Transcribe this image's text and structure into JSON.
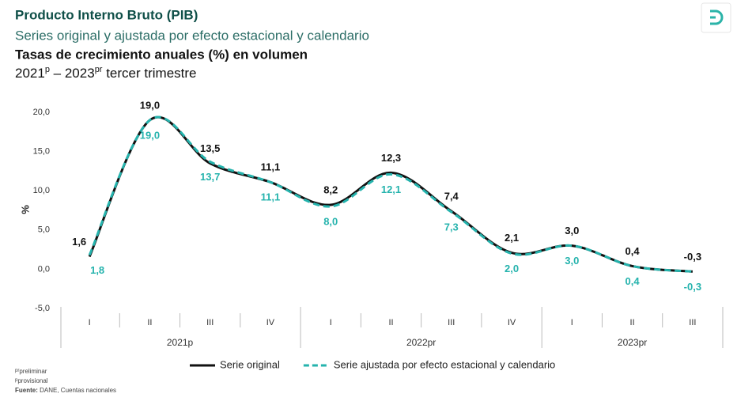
{
  "chart_data": {
    "type": "line",
    "title": "Producto Interno Bruto (PIB)",
    "subtitle": "Series original y ajustada por efecto estacional y calendario",
    "subtitle_bold": "Tasas de crecimiento anuales (%) en volumen",
    "period_parts": [
      "2021",
      "p",
      " – 2023",
      "pr",
      " tercer trimestre"
    ],
    "y_label": "%",
    "categories": [
      "I",
      "II",
      "III",
      "IV",
      "I",
      "II",
      "III",
      "IV",
      "I",
      "II",
      "III"
    ],
    "category_groups": [
      "2021p",
      "2022pr",
      "2023pr"
    ],
    "ylim": [
      -5,
      20
    ],
    "yticks": [
      {
        "value": 20,
        "label": "20,0"
      },
      {
        "value": 15,
        "label": "15,0"
      },
      {
        "value": 10,
        "label": "10,0"
      },
      {
        "value": 5,
        "label": "5,0"
      },
      {
        "value": 0,
        "label": "0,0"
      },
      {
        "value": -5,
        "label": "-5,0"
      }
    ],
    "grid": false,
    "legend": "bottom",
    "series": [
      {
        "name": "Serie original",
        "color": "#111111",
        "dashed": false,
        "values": [
          1.6,
          19.0,
          13.5,
          11.1,
          8.2,
          12.3,
          7.4,
          2.1,
          3.0,
          0.4,
          -0.3
        ],
        "value_labels": [
          "1,6",
          "19,0",
          "13,5",
          "11,1",
          "8,2",
          "12,3",
          "7,4",
          "2,1",
          "3,0",
          "0,4",
          "-0,3"
        ]
      },
      {
        "name": "Serie ajustada por efecto estacional y calendario",
        "color": "#25b3ad",
        "dashed": true,
        "values": [
          1.8,
          19.0,
          13.7,
          11.1,
          8.0,
          12.1,
          7.3,
          2.0,
          3.0,
          0.4,
          -0.3
        ],
        "value_labels": [
          "1,8",
          "19,0",
          "13,7",
          "11,1",
          "8,0",
          "12,1",
          "7,3",
          "2,0",
          "3,0",
          "0,4",
          "-0,3"
        ]
      }
    ],
    "notes": [
      {
        "mark": "pr",
        "text": "preliminar"
      },
      {
        "mark": "p",
        "text": "provisional"
      }
    ],
    "source_label": "Fuente:",
    "source": " DANE, Cuentas nacionales"
  }
}
